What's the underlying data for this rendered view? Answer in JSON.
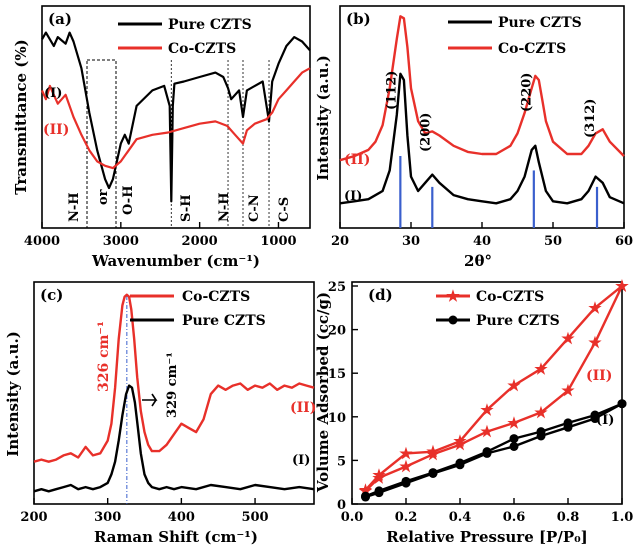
{
  "chart_data": [
    {
      "panel": "(a)",
      "type": "line",
      "xlabel": "Wavenumber (cm⁻¹)",
      "ylabel": "Transmittance (%)",
      "xlim": [
        4000,
        600
      ],
      "xticks": [
        4000,
        3000,
        2000,
        1000
      ],
      "colors": {
        "Pure CZTS": "#000000",
        "Co-CZTS": "#e8302a"
      },
      "series": [
        {
          "name": "Pure CZTS",
          "label": "(I)",
          "color": "#000000",
          "x": [
            4000,
            3950,
            3850,
            3800,
            3700,
            3650,
            3600,
            3500,
            3400,
            3300,
            3200,
            3150,
            3100,
            3000,
            2950,
            2900,
            2800,
            2600,
            2450,
            2380,
            2360,
            2340,
            2320,
            2200,
            2000,
            1800,
            1700,
            1640,
            1600,
            1500,
            1450,
            1400,
            1300,
            1200,
            1120,
            1080,
            1000,
            900,
            800,
            700,
            600
          ],
          "y": [
            0.85,
            0.88,
            0.82,
            0.86,
            0.83,
            0.88,
            0.84,
            0.72,
            0.52,
            0.35,
            0.22,
            0.18,
            0.22,
            0.38,
            0.42,
            0.38,
            0.55,
            0.62,
            0.64,
            0.55,
            0.12,
            0.55,
            0.65,
            0.66,
            0.68,
            0.7,
            0.68,
            0.63,
            0.58,
            0.62,
            0.5,
            0.62,
            0.64,
            0.66,
            0.48,
            0.66,
            0.74,
            0.82,
            0.86,
            0.84,
            0.8
          ]
        },
        {
          "name": "Co-CZTS",
          "label": "(II)",
          "color": "#e8302a",
          "x": [
            4000,
            3950,
            3900,
            3850,
            3800,
            3700,
            3600,
            3500,
            3400,
            3300,
            3200,
            3100,
            3000,
            2900,
            2800,
            2600,
            2400,
            2200,
            2000,
            1800,
            1650,
            1550,
            1450,
            1400,
            1300,
            1150,
            1080,
            1000,
            900,
            800,
            700,
            600
          ],
          "y": [
            0.62,
            0.58,
            0.64,
            0.6,
            0.56,
            0.6,
            0.5,
            0.42,
            0.35,
            0.3,
            0.28,
            0.27,
            0.3,
            0.35,
            0.4,
            0.42,
            0.43,
            0.45,
            0.47,
            0.48,
            0.46,
            0.42,
            0.38,
            0.44,
            0.47,
            0.49,
            0.52,
            0.58,
            0.62,
            0.66,
            0.7,
            0.72
          ]
        }
      ],
      "annotations": [
        "N-H",
        "or",
        "O-H",
        "S-H",
        "N-H",
        "C-N",
        "C-S"
      ]
    },
    {
      "panel": "(b)",
      "type": "line",
      "xlabel": "2θ°",
      "ylabel": "Intensity (a.u.)",
      "xlim": [
        20,
        60
      ],
      "xticks": [
        20,
        30,
        40,
        50,
        60
      ],
      "colors": {
        "Pure CZTS": "#000000",
        "Co-CZTS": "#e8302a",
        "reference": "#3a5fcd"
      },
      "series": [
        {
          "name": "Pure CZTS",
          "label": "(I)",
          "color": "#000000",
          "x": [
            20,
            22,
            24,
            26,
            27,
            28,
            28.5,
            29,
            29.5,
            30,
            31,
            32,
            33,
            34,
            36,
            38,
            40,
            42,
            44,
            45,
            46,
            47,
            47.5,
            48,
            49,
            50,
            52,
            54,
            55,
            56,
            57,
            58,
            60
          ],
          "y": [
            0.12,
            0.13,
            0.14,
            0.18,
            0.28,
            0.55,
            0.75,
            0.72,
            0.45,
            0.25,
            0.18,
            0.22,
            0.26,
            0.22,
            0.16,
            0.14,
            0.13,
            0.12,
            0.14,
            0.18,
            0.25,
            0.38,
            0.4,
            0.32,
            0.18,
            0.13,
            0.12,
            0.14,
            0.18,
            0.25,
            0.22,
            0.15,
            0.12
          ]
        },
        {
          "name": "Co-CZTS",
          "label": "(II)",
          "color": "#e8302a",
          "x": [
            20,
            22,
            24,
            25,
            26,
            27,
            28,
            28.5,
            29,
            29.5,
            30,
            31,
            32,
            33,
            34,
            36,
            38,
            40,
            42,
            44,
            45,
            46,
            47,
            47.5,
            48,
            48.5,
            49,
            50,
            52,
            54,
            55,
            56,
            57,
            58,
            60
          ],
          "y": [
            0.33,
            0.35,
            0.38,
            0.42,
            0.5,
            0.68,
            0.92,
            1.03,
            1.02,
            0.88,
            0.68,
            0.52,
            0.46,
            0.47,
            0.45,
            0.4,
            0.37,
            0.36,
            0.36,
            0.4,
            0.46,
            0.56,
            0.68,
            0.74,
            0.72,
            0.62,
            0.52,
            0.42,
            0.36,
            0.36,
            0.4,
            0.46,
            0.48,
            0.42,
            0.35
          ]
        }
      ],
      "reference_peaks": [
        {
          "x": 28.5,
          "h": 0.35
        },
        {
          "x": 33.0,
          "h": 0.2
        },
        {
          "x": 47.3,
          "h": 0.28
        },
        {
          "x": 56.2,
          "h": 0.2
        }
      ],
      "peak_labels": [
        {
          "text": "(112)",
          "x": 28.5
        },
        {
          "text": "(200)",
          "x": 33.3
        },
        {
          "text": "(220)",
          "x": 47.5
        },
        {
          "text": "(312)",
          "x": 56.5
        }
      ]
    },
    {
      "panel": "(c)",
      "type": "line",
      "xlabel": "Raman Shift (cm⁻¹)",
      "ylabel": "Intensity (a.u.)",
      "xlim": [
        200,
        580
      ],
      "xticks": [
        200,
        300,
        400,
        500
      ],
      "colors": {
        "Pure CZTS": "#000000",
        "Co-CZTS": "#e8302a",
        "guide": "#3a5fcd"
      },
      "series": [
        {
          "name": "Co-CZTS",
          "label": "(II)",
          "color": "#e8302a",
          "x": [
            200,
            210,
            220,
            230,
            240,
            250,
            260,
            270,
            280,
            290,
            300,
            305,
            310,
            315,
            320,
            323,
            326,
            329,
            332,
            336,
            340,
            345,
            350,
            355,
            360,
            370,
            380,
            390,
            400,
            410,
            420,
            430,
            440,
            450,
            460,
            470,
            480,
            490,
            500,
            510,
            520,
            530,
            540,
            550,
            560,
            570,
            580
          ],
          "y": [
            0.2,
            0.21,
            0.2,
            0.21,
            0.23,
            0.24,
            0.22,
            0.27,
            0.23,
            0.24,
            0.3,
            0.38,
            0.55,
            0.78,
            0.94,
            0.98,
            0.99,
            0.98,
            0.92,
            0.78,
            0.6,
            0.44,
            0.34,
            0.28,
            0.25,
            0.25,
            0.28,
            0.33,
            0.38,
            0.36,
            0.34,
            0.4,
            0.52,
            0.56,
            0.54,
            0.56,
            0.57,
            0.54,
            0.56,
            0.55,
            0.57,
            0.54,
            0.56,
            0.55,
            0.57,
            0.56,
            0.55
          ]
        },
        {
          "name": "Pure CZTS",
          "label": "(I)",
          "color": "#000000",
          "x": [
            200,
            210,
            220,
            230,
            240,
            250,
            260,
            270,
            280,
            290,
            300,
            305,
            310,
            315,
            320,
            325,
            329,
            333,
            337,
            341,
            345,
            350,
            355,
            360,
            370,
            380,
            390,
            400,
            420,
            440,
            460,
            480,
            500,
            520,
            540,
            560,
            580
          ],
          "y": [
            0.06,
            0.07,
            0.06,
            0.07,
            0.08,
            0.09,
            0.07,
            0.08,
            0.07,
            0.08,
            0.1,
            0.14,
            0.2,
            0.3,
            0.42,
            0.52,
            0.56,
            0.55,
            0.48,
            0.36,
            0.24,
            0.14,
            0.1,
            0.08,
            0.07,
            0.08,
            0.07,
            0.08,
            0.07,
            0.09,
            0.08,
            0.07,
            0.09,
            0.08,
            0.07,
            0.08,
            0.07
          ]
        }
      ],
      "annotations": [
        {
          "text": "326 cm⁻¹",
          "color": "#e8302a",
          "x": 326
        },
        {
          "text": "329 cm⁻¹",
          "color": "#000000",
          "x": 329
        }
      ],
      "guide_x": 326
    },
    {
      "panel": "(d)",
      "type": "line",
      "xlabel": "Relative Pressure [P/P₀]",
      "ylabel": "Volume Adsorbed (cc/g)",
      "xlim": [
        0.0,
        1.0
      ],
      "ylim": [
        0,
        25
      ],
      "xticks": [
        0.0,
        0.2,
        0.4,
        0.6,
        0.8,
        1.0
      ],
      "yticks": [
        0,
        5,
        10,
        15,
        20,
        25
      ],
      "colors": {
        "Pure CZTS": "#000000",
        "Co-CZTS": "#e8302a"
      },
      "series": [
        {
          "name": "Co-CZTS",
          "label": "(II)",
          "color": "#e8302a",
          "marker": "star",
          "branches": [
            {
              "x": [
                0.05,
                0.1,
                0.2,
                0.3,
                0.4,
                0.5,
                0.6,
                0.7,
                0.8,
                0.9,
                1.0
              ],
              "y": [
                1.5,
                3.0,
                4.3,
                5.7,
                6.8,
                8.3,
                9.3,
                10.5,
                13.0,
                18.5,
                25.0
              ]
            },
            {
              "x": [
                1.0,
                0.9,
                0.8,
                0.7,
                0.6,
                0.5,
                0.4,
                0.3,
                0.2,
                0.1,
                0.05
              ],
              "y": [
                25.0,
                22.5,
                19.0,
                15.5,
                13.6,
                10.8,
                7.2,
                6.0,
                5.8,
                3.3,
                1.6
              ]
            }
          ]
        },
        {
          "name": "Pure CZTS",
          "label": "(I)",
          "color": "#000000",
          "marker": "circle",
          "branches": [
            {
              "x": [
                0.05,
                0.1,
                0.2,
                0.3,
                0.4,
                0.5,
                0.6,
                0.7,
                0.8,
                0.9,
                1.0
              ],
              "y": [
                0.8,
                1.3,
                2.4,
                3.5,
                4.5,
                5.8,
                6.6,
                7.8,
                8.8,
                9.8,
                11.5
              ]
            },
            {
              "x": [
                1.0,
                0.9,
                0.8,
                0.7,
                0.6,
                0.5,
                0.4,
                0.3,
                0.2,
                0.1,
                0.05
              ],
              "y": [
                11.5,
                10.2,
                9.3,
                8.3,
                7.5,
                6.0,
                4.7,
                3.6,
                2.6,
                1.5,
                0.9
              ]
            }
          ]
        }
      ]
    }
  ]
}
